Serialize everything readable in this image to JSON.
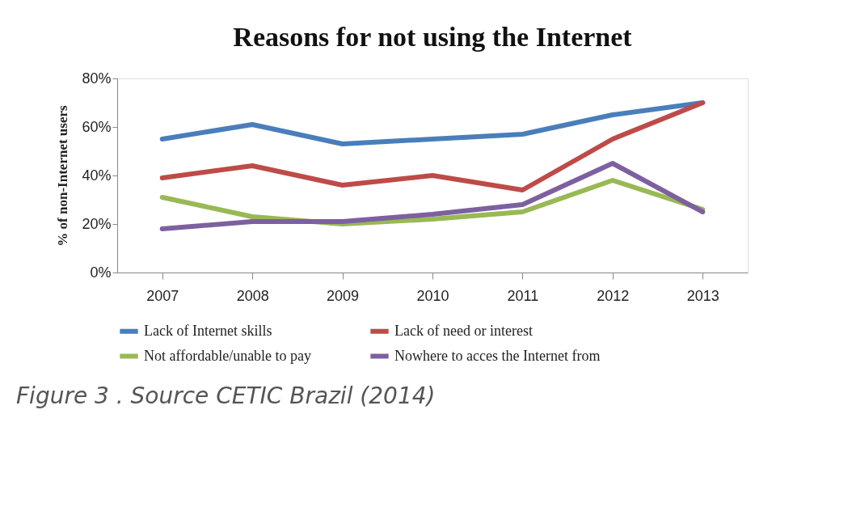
{
  "chart_data": {
    "type": "line",
    "title": "Reasons for not using the Internet",
    "ylabel": "% of non-Internet users",
    "categories": [
      "2007",
      "2008",
      "2009",
      "2010",
      "2011",
      "2012",
      "2013"
    ],
    "series": [
      {
        "name": "Lack of Internet skills",
        "color": "#4a7ebb",
        "values": [
          55,
          61,
          53,
          55,
          57,
          65,
          70
        ]
      },
      {
        "name": "Lack of need or interest",
        "color": "#be4b48",
        "values": [
          39,
          44,
          36,
          40,
          34,
          55,
          70
        ]
      },
      {
        "name": "Not affordable/unable to pay",
        "color": "#98b954",
        "values": [
          31,
          23,
          20,
          22,
          25,
          38,
          26
        ]
      },
      {
        "name": "Nowhere to acces the Internet from",
        "color": "#7d60a0",
        "values": [
          18,
          21,
          21,
          24,
          28,
          45,
          25
        ]
      }
    ],
    "ylim": [
      0,
      80
    ],
    "yticks": [
      {
        "value": 0,
        "label": "0%"
      },
      {
        "value": 20,
        "label": "20%"
      },
      {
        "value": 40,
        "label": "40%"
      },
      {
        "value": 60,
        "label": "60%"
      },
      {
        "value": 80,
        "label": "80%"
      }
    ],
    "grid": false,
    "legend": "bottom",
    "marker": "none",
    "line_style": "solid",
    "annotations": [
      "Figure 3 . Source CETIC Brazil (2014)"
    ]
  }
}
